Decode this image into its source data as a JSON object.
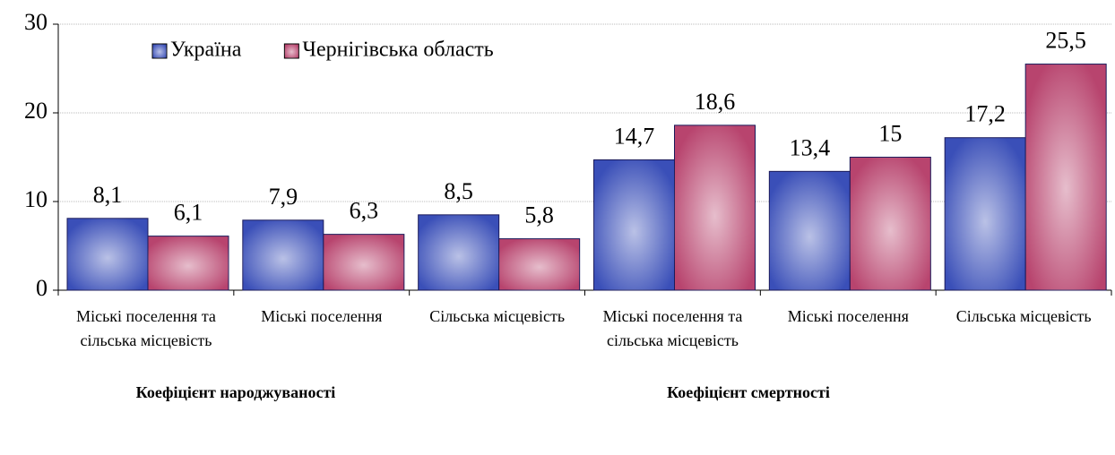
{
  "chart_data": {
    "type": "bar",
    "categories": [
      "Міські поселення та сільська місцевість",
      "Міські поселення",
      "Сільська місцевість",
      "Міські поселення та сільська місцевість",
      "Міські поселення",
      "Сільська місцевість"
    ],
    "group_labels": [
      "Коефіцієнт народжуваності",
      "Коефіцієнт смертності"
    ],
    "series": [
      {
        "name": "Україна",
        "color": "#3a4fb8",
        "values": [
          8.1,
          7.9,
          8.5,
          14.7,
          13.4,
          17.2
        ],
        "value_labels": [
          "8,1",
          "7,9",
          "8,5",
          "14,7",
          "13,4",
          "17,2"
        ]
      },
      {
        "name": "Чернігівська область",
        "color": "#b8446e",
        "values": [
          6.1,
          6.3,
          5.8,
          18.6,
          15,
          25.5
        ],
        "value_labels": [
          "6,1",
          "6,3",
          "5,8",
          "18,6",
          "15",
          "25,5"
        ]
      }
    ],
    "ylim": [
      0,
      30
    ],
    "yticks": [
      0,
      10,
      20,
      30
    ],
    "grid": true,
    "legend": "top-left"
  }
}
